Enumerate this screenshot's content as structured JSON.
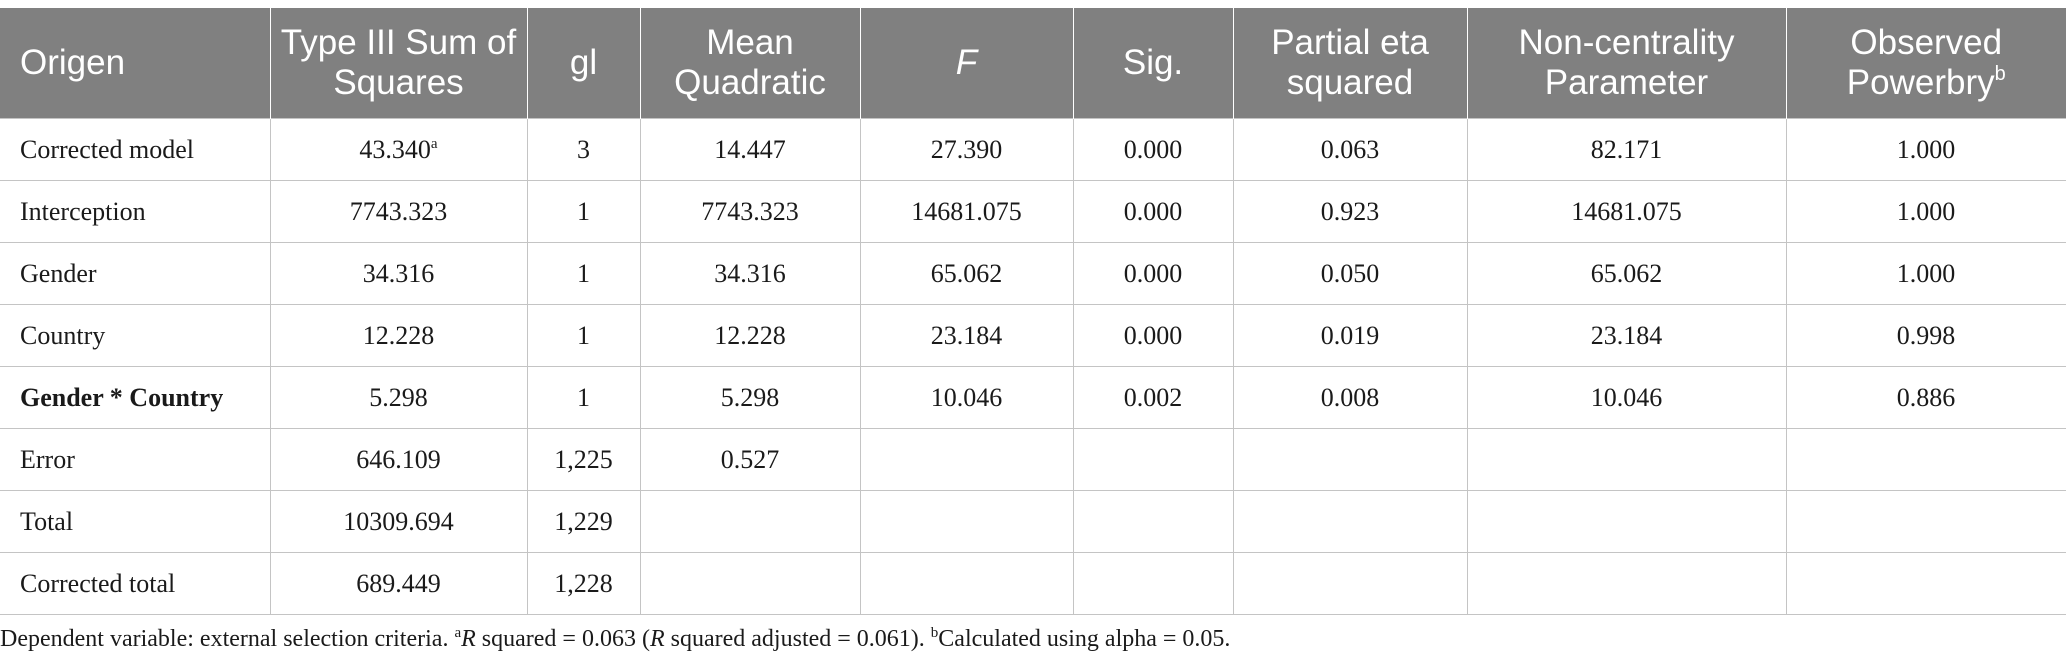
{
  "table": {
    "headers": [
      {
        "label": "Origen",
        "sup": ""
      },
      {
        "label": "Type III Sum of Squares",
        "sup": ""
      },
      {
        "label": "gl",
        "sup": ""
      },
      {
        "label": "Mean Quadratic",
        "sup": ""
      },
      {
        "label": "F",
        "sup": ""
      },
      {
        "label": "Sig.",
        "sup": ""
      },
      {
        "label": "Partial eta squared",
        "sup": ""
      },
      {
        "label": "Non-centrality Parameter",
        "sup": ""
      },
      {
        "label": "Observed Powerbry",
        "sup": "b"
      }
    ],
    "rows": [
      {
        "origen": "Corrected model",
        "ss": "43.340",
        "ss_sup": "a",
        "gl": "3",
        "mq": "14.447",
        "f": "27.390",
        "sig": "0.000",
        "eta": "0.063",
        "ncp": "82.171",
        "power": "1.000"
      },
      {
        "origen": "Interception",
        "ss": "7743.323",
        "ss_sup": "",
        "gl": "1",
        "mq": "7743.323",
        "f": "14681.075",
        "sig": "0.000",
        "eta": "0.923",
        "ncp": "14681.075",
        "power": "1.000"
      },
      {
        "origen": "Gender",
        "ss": "34.316",
        "ss_sup": "",
        "gl": "1",
        "mq": "34.316",
        "f": "65.062",
        "sig": "0.000",
        "eta": "0.050",
        "ncp": "65.062",
        "power": "1.000"
      },
      {
        "origen": "Country",
        "ss": "12.228",
        "ss_sup": "",
        "gl": "1",
        "mq": "12.228",
        "f": "23.184",
        "sig": "0.000",
        "eta": "0.019",
        "ncp": "23.184",
        "power": "0.998"
      },
      {
        "origen": "Gender * Country",
        "ss": "5.298",
        "ss_sup": "",
        "gl": "1",
        "mq": "5.298",
        "f": "10.046",
        "sig": "0.002",
        "eta": "0.008",
        "ncp": "10.046",
        "power": "0.886"
      },
      {
        "origen": "Error",
        "ss": "646.109",
        "ss_sup": "",
        "gl": "1,225",
        "mq": "0.527",
        "f": "",
        "sig": "",
        "eta": "",
        "ncp": "",
        "power": ""
      },
      {
        "origen": "Total",
        "ss": "10309.694",
        "ss_sup": "",
        "gl": "1,229",
        "mq": "",
        "f": "",
        "sig": "",
        "eta": "",
        "ncp": "",
        "power": ""
      },
      {
        "origen": "Corrected total",
        "ss": "689.449",
        "ss_sup": "",
        "gl": "1,228",
        "mq": "",
        "f": "",
        "sig": "",
        "eta": "",
        "ncp": "",
        "power": ""
      }
    ]
  },
  "footnote": {
    "part1": "Dependent variable: external selection criteria. ",
    "sup_a": "a",
    "r1": "R",
    "part2": " squared = 0.063 (",
    "r2": "R",
    "part3": " squared adjusted = 0.061). ",
    "sup_b": "b",
    "part4": "Calculated using alpha = 0.05."
  }
}
